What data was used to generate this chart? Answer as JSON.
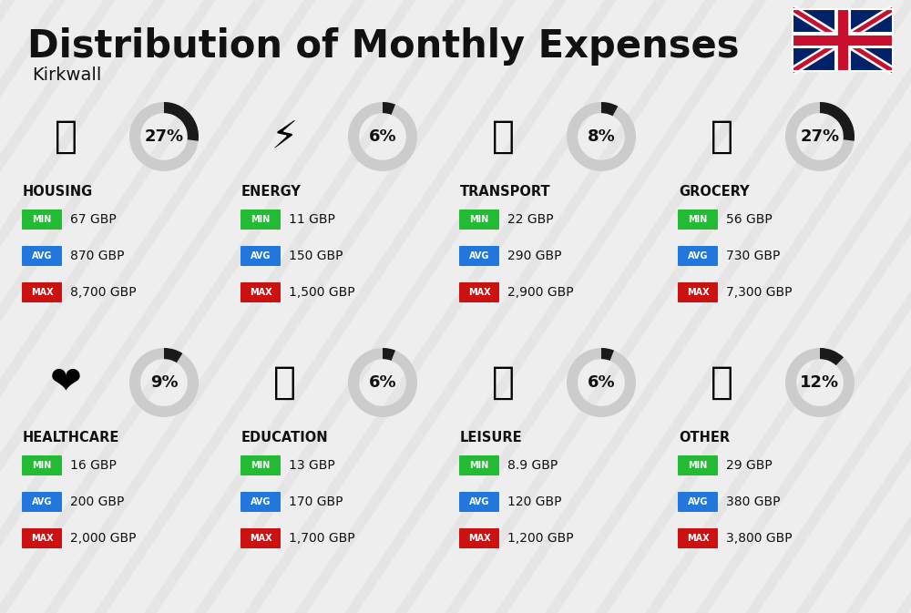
{
  "title": "Distribution of Monthly Expenses",
  "subtitle": "Kirkwall",
  "background_color": "#eeeeee",
  "stripe_color": "#dddddd",
  "categories": [
    {
      "name": "HOUSING",
      "pct": 27,
      "min_val": "67 GBP",
      "avg_val": "870 GBP",
      "max_val": "8,700 GBP",
      "row": 0,
      "col": 0
    },
    {
      "name": "ENERGY",
      "pct": 6,
      "min_val": "11 GBP",
      "avg_val": "150 GBP",
      "max_val": "1,500 GBP",
      "row": 0,
      "col": 1
    },
    {
      "name": "TRANSPORT",
      "pct": 8,
      "min_val": "22 GBP",
      "avg_val": "290 GBP",
      "max_val": "2,900 GBP",
      "row": 0,
      "col": 2
    },
    {
      "name": "GROCERY",
      "pct": 27,
      "min_val": "56 GBP",
      "avg_val": "730 GBP",
      "max_val": "7,300 GBP",
      "row": 0,
      "col": 3
    },
    {
      "name": "HEALTHCARE",
      "pct": 9,
      "min_val": "16 GBP",
      "avg_val": "200 GBP",
      "max_val": "2,000 GBP",
      "row": 1,
      "col": 0
    },
    {
      "name": "EDUCATION",
      "pct": 6,
      "min_val": "13 GBP",
      "avg_val": "170 GBP",
      "max_val": "1,700 GBP",
      "row": 1,
      "col": 1
    },
    {
      "name": "LEISURE",
      "pct": 6,
      "min_val": "8.9 GBP",
      "avg_val": "120 GBP",
      "max_val": "1,200 GBP",
      "row": 1,
      "col": 2
    },
    {
      "name": "OTHER",
      "pct": 12,
      "min_val": "29 GBP",
      "avg_val": "380 GBP",
      "max_val": "3,800 GBP",
      "row": 1,
      "col": 3
    }
  ],
  "min_color": "#22bb33",
  "avg_color": "#2277dd",
  "max_color": "#cc1111",
  "text_color": "#111111",
  "circle_bg": "#cccccc",
  "circle_fg": "#1a1a1a",
  "flag_blue": "#012169",
  "flag_red": "#C8102E"
}
